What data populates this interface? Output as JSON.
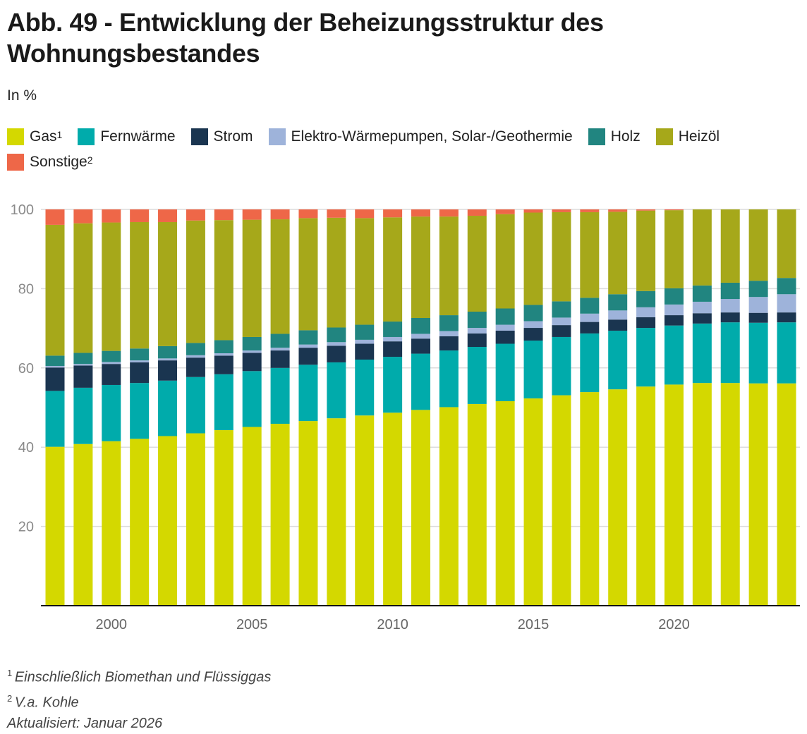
{
  "title": "Abb. 49 - Entwicklung der Beheizungsstruktur des Wohnungsbestandes",
  "subtitle": "In %",
  "legend": [
    {
      "label": "Gas",
      "sup": "1",
      "color": "#d4d800"
    },
    {
      "label": "Fernwärme",
      "sup": "",
      "color": "#00abab"
    },
    {
      "label": "Strom",
      "sup": "",
      "color": "#1a3550"
    },
    {
      "label": "Elektro-Wärmepumpen, Solar-/Geothermie",
      "sup": "",
      "color": "#9eb3da"
    },
    {
      "label": "Holz",
      "sup": "",
      "color": "#218580"
    },
    {
      "label": "Heizöl",
      "sup": "",
      "color": "#a6a81a"
    },
    {
      "label": "Sonstige",
      "sup": "2",
      "color": "#ee6748"
    }
  ],
  "footnotes": [
    {
      "sup": "1",
      "text": "Einschließlich Biomethan und Flüssiggas"
    },
    {
      "sup": "2",
      "text": "V.a. Kohle"
    },
    {
      "sup": "",
      "text": "Aktualisiert: Januar 2026"
    }
  ],
  "chart_data": {
    "type": "bar",
    "stacked": true,
    "title": "Abb. 49 - Entwicklung der Beheizungsstruktur des Wohnungsbestandes",
    "ylabel": "In %",
    "xlabel": "",
    "ylim": [
      0,
      100
    ],
    "yticks": [
      20,
      40,
      60,
      80,
      100
    ],
    "xticks": [
      2000,
      2005,
      2010,
      2015,
      2020
    ],
    "grid": true,
    "legend_position": "top",
    "categories": [
      1998,
      1999,
      2000,
      2001,
      2002,
      2003,
      2004,
      2005,
      2006,
      2007,
      2008,
      2009,
      2010,
      2011,
      2012,
      2013,
      2014,
      2015,
      2016,
      2017,
      2018,
      2019,
      2020,
      2021,
      2022,
      2023,
      2024
    ],
    "series": [
      {
        "name": "Gas",
        "color": "#d4d800",
        "values": [
          40.1,
          40.8,
          41.5,
          42.1,
          42.8,
          43.5,
          44.3,
          45.1,
          45.9,
          46.6,
          47.3,
          48.0,
          48.7,
          49.4,
          50.1,
          50.9,
          51.6,
          52.3,
          53.1,
          53.9,
          54.6,
          55.3,
          55.8,
          56.2,
          56.2,
          56.1,
          56.1
        ]
      },
      {
        "name": "Fernwärme",
        "color": "#00abab",
        "values": [
          14.1,
          14.2,
          14.2,
          14.1,
          14.0,
          14.2,
          14.1,
          14.1,
          14.1,
          14.2,
          14.1,
          14.1,
          14.1,
          14.2,
          14.3,
          14.4,
          14.5,
          14.6,
          14.7,
          14.8,
          14.8,
          14.8,
          14.9,
          15.0,
          15.3,
          15.3,
          15.4
        ]
      },
      {
        "name": "Strom",
        "color": "#1a3550",
        "values": [
          5.9,
          5.6,
          5.3,
          5.2,
          5.1,
          4.9,
          4.7,
          4.6,
          4.4,
          4.3,
          4.2,
          4.0,
          3.9,
          3.8,
          3.6,
          3.4,
          3.3,
          3.2,
          3.0,
          2.9,
          2.8,
          2.7,
          2.6,
          2.6,
          2.5,
          2.5,
          2.5
        ]
      },
      {
        "name": "Elektro-Wärmepumpen, Solar-/Geothermie",
        "color": "#9eb3da",
        "values": [
          0.4,
          0.4,
          0.5,
          0.5,
          0.5,
          0.6,
          0.6,
          0.6,
          0.7,
          0.8,
          0.9,
          1.0,
          1.1,
          1.2,
          1.3,
          1.4,
          1.5,
          1.7,
          1.9,
          2.1,
          2.3,
          2.5,
          2.7,
          2.9,
          3.4,
          4.0,
          4.6
        ]
      },
      {
        "name": "Holz",
        "color": "#218580",
        "values": [
          2.6,
          2.8,
          2.8,
          3.0,
          3.1,
          3.1,
          3.3,
          3.4,
          3.5,
          3.6,
          3.7,
          3.8,
          3.9,
          4.0,
          4.0,
          4.1,
          4.1,
          4.1,
          4.1,
          4.0,
          4.1,
          4.1,
          4.1,
          4.1,
          4.1,
          4.1,
          4.1
        ]
      },
      {
        "name": "Heizöl",
        "color": "#a6a81a",
        "values": [
          33.0,
          32.7,
          32.4,
          31.9,
          31.3,
          30.9,
          30.3,
          29.6,
          28.9,
          28.3,
          27.7,
          26.9,
          26.3,
          25.6,
          24.9,
          24.2,
          23.8,
          23.3,
          22.5,
          21.6,
          20.8,
          20.3,
          19.7,
          19.2,
          18.5,
          18.0,
          17.3
        ]
      },
      {
        "name": "Sonstige",
        "color": "#ee6748",
        "values": [
          3.9,
          3.5,
          3.3,
          3.2,
          3.2,
          2.8,
          2.7,
          2.6,
          2.5,
          2.2,
          2.1,
          2.2,
          2.0,
          1.8,
          1.8,
          1.6,
          1.2,
          0.8,
          0.7,
          0.7,
          0.6,
          0.3,
          0.2,
          0.0,
          0.0,
          0.0,
          0.0
        ]
      }
    ]
  }
}
